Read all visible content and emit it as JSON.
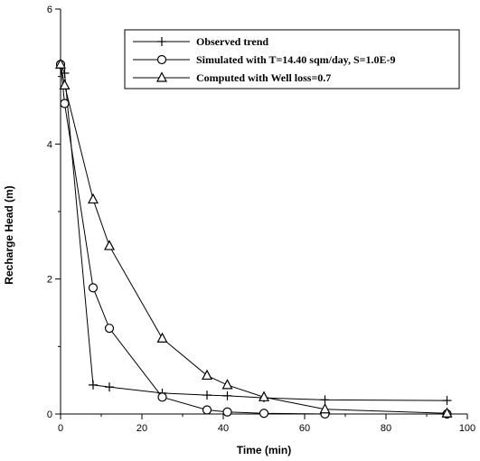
{
  "chart_data": {
    "type": "line",
    "title": "",
    "xlabel": "Time (min)",
    "ylabel": "Recharge Head (m)",
    "xlim": [
      0,
      100
    ],
    "ylim": [
      0,
      6
    ],
    "x_ticks": [
      "0",
      "20",
      "40",
      "60",
      "80",
      "100"
    ],
    "y_ticks": [
      "0",
      "2",
      "4",
      "6"
    ],
    "grid": false,
    "legend_position": "top-right",
    "series": [
      {
        "name": "Observed trend",
        "marker": "plus",
        "x": [
          0,
          1,
          8,
          12,
          25,
          36,
          41,
          50,
          65,
          95
        ],
        "y": [
          5.18,
          5.05,
          0.43,
          0.4,
          0.31,
          0.28,
          0.27,
          0.24,
          0.21,
          0.2
        ]
      },
      {
        "name": "Simulated with T=14.40 sqm/day, S=1.0E-9",
        "marker": "circle",
        "x": [
          0,
          1,
          8,
          12,
          25,
          36,
          41,
          50,
          65,
          95
        ],
        "y": [
          5.18,
          4.6,
          1.87,
          1.27,
          0.25,
          0.06,
          0.03,
          0.01,
          0.0,
          0.0
        ]
      },
      {
        "name": "Computed with Well loss=0.7",
        "marker": "triangle",
        "x": [
          0,
          1,
          8,
          12,
          25,
          36,
          41,
          50,
          65,
          95
        ],
        "y": [
          5.18,
          4.87,
          3.18,
          2.49,
          1.12,
          0.57,
          0.43,
          0.25,
          0.07,
          0.01
        ]
      }
    ]
  }
}
